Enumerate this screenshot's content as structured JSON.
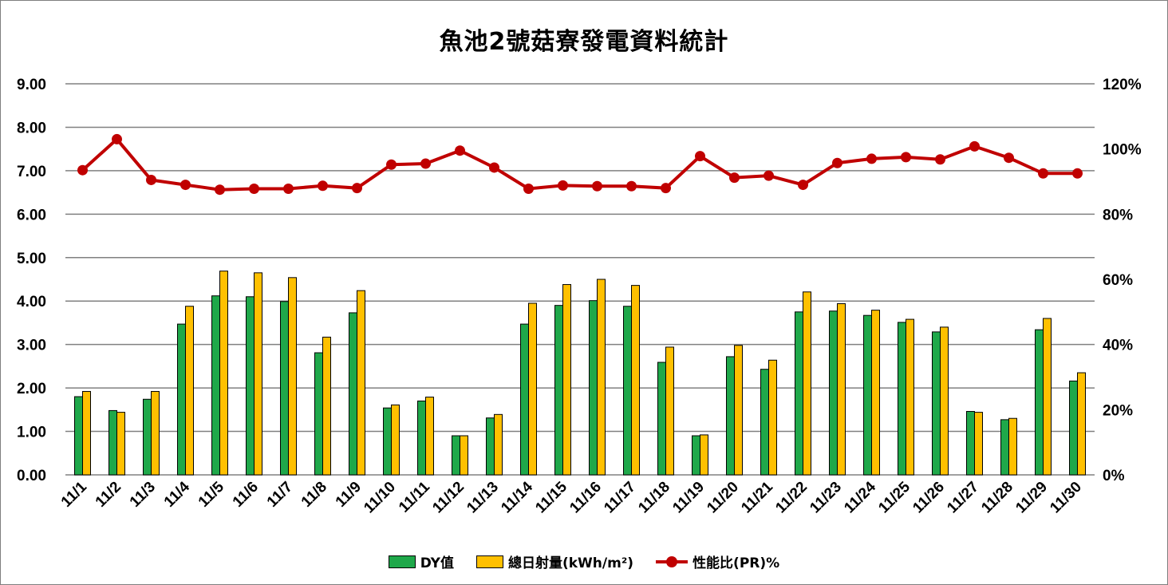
{
  "chart_data": {
    "type": "bar",
    "title": "魚池2號菇寮發電資料統計",
    "categories": [
      "11/1",
      "11/2",
      "11/3",
      "11/4",
      "11/5",
      "11/6",
      "11/7",
      "11/8",
      "11/9",
      "11/10",
      "11/11",
      "11/12",
      "11/13",
      "11/14",
      "11/15",
      "11/16",
      "11/17",
      "11/18",
      "11/19",
      "11/20",
      "11/21",
      "11/22",
      "11/23",
      "11/24",
      "11/25",
      "11/26",
      "11/27",
      "11/28",
      "11/29",
      "11/30"
    ],
    "y_left": {
      "ylim": [
        0,
        9
      ],
      "ticks": [
        "0.00",
        "1.00",
        "2.00",
        "3.00",
        "4.00",
        "5.00",
        "6.00",
        "7.00",
        "8.00",
        "9.00"
      ]
    },
    "y_right": {
      "ylim": [
        0,
        120
      ],
      "ticks": [
        "0%",
        "20%",
        "40%",
        "60%",
        "80%",
        "100%",
        "120%"
      ]
    },
    "grid": true,
    "legend_position": "bottom",
    "series": [
      {
        "name": "DY值",
        "type": "bar",
        "axis": "left",
        "color": "#1fa84a",
        "values": [
          1.8,
          1.48,
          1.74,
          3.47,
          4.12,
          4.1,
          3.99,
          2.81,
          3.73,
          1.54,
          1.7,
          0.9,
          1.31,
          3.47,
          3.9,
          4.01,
          3.88,
          2.59,
          0.9,
          2.72,
          2.43,
          3.75,
          3.77,
          3.67,
          3.51,
          3.29,
          1.46,
          1.27,
          3.34,
          2.16
        ]
      },
      {
        "name": "總日射量(kWh/m²)",
        "type": "bar",
        "axis": "left",
        "color": "#ffc000",
        "values": [
          1.92,
          1.44,
          1.92,
          3.88,
          4.69,
          4.65,
          4.54,
          3.17,
          4.24,
          1.61,
          1.79,
          0.9,
          1.39,
          3.95,
          4.38,
          4.5,
          4.36,
          2.94,
          0.92,
          2.98,
          2.64,
          4.21,
          3.94,
          3.79,
          3.58,
          3.4,
          1.44,
          1.3,
          3.6,
          2.35
        ]
      },
      {
        "name": "性能比(PR)%",
        "type": "line",
        "axis": "right",
        "color": "#c00000",
        "values": [
          93.5,
          103,
          90.5,
          89,
          87.5,
          87.8,
          87.8,
          88.7,
          88,
          95.2,
          95.5,
          99.5,
          94.3,
          87.8,
          88.8,
          88.6,
          88.6,
          88,
          97.8,
          91.2,
          91.8,
          89,
          95.7,
          97,
          97.5,
          96.8,
          100.8,
          97.3,
          92.5,
          92.5
        ]
      }
    ]
  }
}
